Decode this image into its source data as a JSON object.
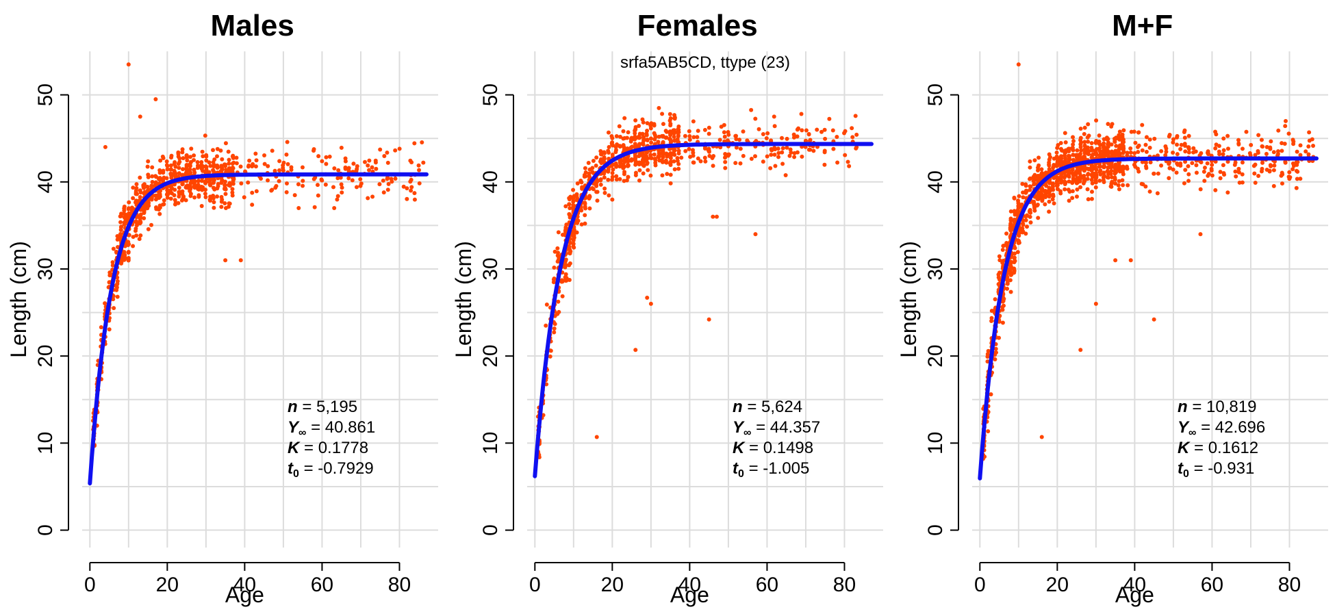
{
  "figure": {
    "subtitle": "srfa5AB5CD, ttype (23)"
  },
  "colors": {
    "points": "#FF4500",
    "curve": "#1010F0",
    "grid": "#DCDCDC",
    "axis": "#000000"
  },
  "chart_data": [
    {
      "type": "scatter",
      "title": "Males",
      "xlabel": "Age",
      "ylabel": "Length (cm)",
      "xlim": [
        -2,
        90
      ],
      "ylim": [
        -2,
        55
      ],
      "xticks": [
        0,
        20,
        40,
        60,
        80
      ],
      "yticks": [
        0,
        10,
        20,
        30,
        40,
        50
      ],
      "grid": true,
      "stats": {
        "n": "5,195",
        "Yinf": "40.861",
        "K": "0.1778",
        "t0": "-0.7929"
      },
      "curve": {
        "Linf": 40.861,
        "K": 0.1778,
        "t0": -0.7929,
        "x": [
          0,
          87
        ]
      },
      "points_summary": {
        "approx_count": 5195,
        "age_range": [
          1,
          87
        ],
        "length_range": [
          9,
          53.5
        ]
      },
      "outliers": [
        [
          10,
          53.5
        ],
        [
          35,
          31
        ],
        [
          39,
          31
        ],
        [
          17,
          49.5
        ],
        [
          13,
          47.5
        ],
        [
          4,
          44
        ]
      ]
    },
    {
      "type": "scatter",
      "title": "Females",
      "xlabel": "Age",
      "ylabel": "Length (cm)",
      "xlim": [
        -2,
        90
      ],
      "ylim": [
        -2,
        55
      ],
      "xticks": [
        0,
        20,
        40,
        60,
        80
      ],
      "yticks": [
        0,
        10,
        20,
        30,
        40,
        50
      ],
      "grid": true,
      "stats": {
        "n": "5,624",
        "Yinf": "44.357",
        "K": "0.1498",
        "t0": "-1.005"
      },
      "curve": {
        "Linf": 44.357,
        "K": 0.1498,
        "t0": -1.005,
        "x": [
          0,
          87
        ]
      },
      "points_summary": {
        "approx_count": 5624,
        "age_range": [
          1,
          84
        ],
        "length_range": [
          10.5,
          50
        ]
      },
      "outliers": [
        [
          16,
          10.7
        ],
        [
          26,
          20.7
        ],
        [
          45,
          24.2
        ],
        [
          57,
          34
        ],
        [
          30,
          26
        ],
        [
          29,
          26.7
        ],
        [
          47,
          36
        ],
        [
          46,
          36
        ]
      ]
    },
    {
      "type": "scatter",
      "title": "M+F",
      "xlabel": "Age",
      "ylabel": "Length (cm)",
      "xlim": [
        -2,
        90
      ],
      "ylim": [
        -2,
        55
      ],
      "xticks": [
        0,
        20,
        40,
        60,
        80
      ],
      "yticks": [
        0,
        10,
        20,
        30,
        40,
        50
      ],
      "grid": true,
      "stats": {
        "n": "10,819",
        "Yinf": "42.696",
        "K": "0.1612",
        "t0": "-0.931"
      },
      "curve": {
        "Linf": 42.696,
        "K": 0.1612,
        "t0": -0.931,
        "x": [
          0,
          87
        ]
      },
      "points_summary": {
        "approx_count": 10819,
        "age_range": [
          1,
          87
        ],
        "length_range": [
          9,
          53.5
        ]
      },
      "outliers": [
        [
          10,
          53.5
        ],
        [
          16,
          10.7
        ],
        [
          26,
          20.7
        ],
        [
          45,
          24.2
        ],
        [
          57,
          34
        ],
        [
          35,
          31
        ],
        [
          39,
          31
        ],
        [
          30,
          26
        ]
      ]
    }
  ]
}
